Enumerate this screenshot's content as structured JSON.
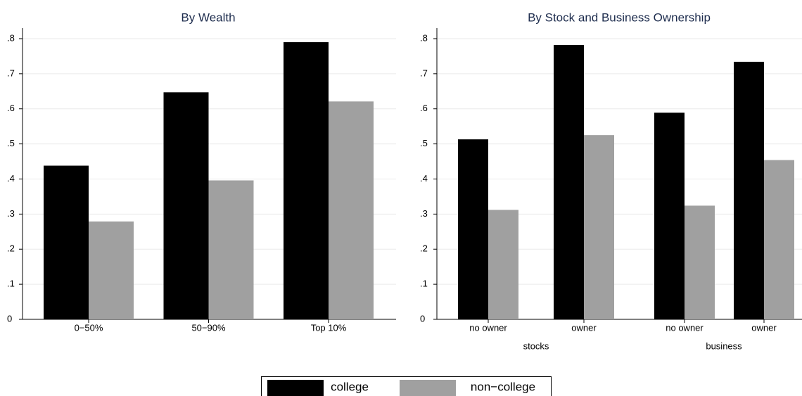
{
  "chart_data": [
    {
      "type": "bar",
      "title": "By Wealth",
      "categories": [
        "0−50%",
        "50−90%",
        "Top 10%"
      ],
      "series": [
        {
          "name": "college",
          "color": "#000000",
          "values": [
            0.438,
            0.647,
            0.79
          ]
        },
        {
          "name": "non−college",
          "color": "#a0a0a0",
          "values": [
            0.279,
            0.396,
            0.621
          ]
        }
      ],
      "ylim": [
        0,
        0.83
      ],
      "yticks": [
        0,
        {
          "value": 0.1,
          "label": ".1"
        },
        {
          "value": 0.2,
          "label": ".2"
        },
        {
          "value": 0.3,
          "label": ".3"
        },
        {
          "value": 0.4,
          "label": ".4"
        },
        {
          "value": 0.5,
          "label": ".5"
        },
        {
          "value": 0.6,
          "label": ".6"
        },
        {
          "value": 0.7,
          "label": ".7"
        },
        {
          "value": 0.8,
          "label": ".8"
        }
      ],
      "grid": true,
      "legend": "bottom"
    },
    {
      "type": "grouped-bar",
      "title": "By Stock and Business Ownership",
      "groups": [
        {
          "name": "stocks",
          "categories": [
            "no owner",
            "owner"
          ]
        },
        {
          "name": "business",
          "categories": [
            "no owner",
            "owner"
          ]
        }
      ],
      "series": [
        {
          "values": [
            0.513,
            0.782,
            0.589,
            0.734
          ]
        },
        {
          "values": [
            0.312,
            0.525,
            0.324,
            0.454
          ]
        }
      ],
      "ylim": [
        0,
        0.83
      ],
      "yticks": [
        0,
        {
          "value": 0.1,
          "label": ".1"
        },
        {
          "value": 0.2,
          "label": ".2"
        },
        {
          "value": 0.3,
          "label": ".3"
        },
        {
          "value": 0.4,
          "label": ".4"
        },
        {
          "value": 0.5,
          "label": ".5"
        },
        {
          "value": 0.6,
          "label": ".6"
        },
        {
          "value": 0.7,
          "label": ".7"
        },
        {
          "value": 0.8,
          "label": ".8"
        }
      ],
      "grid": true
    }
  ]
}
